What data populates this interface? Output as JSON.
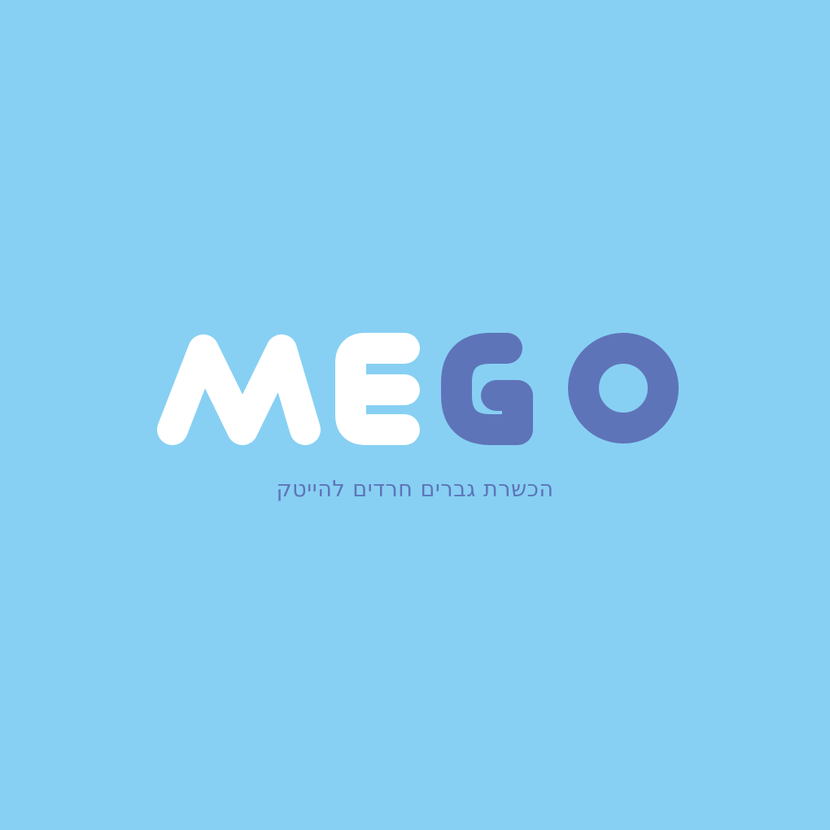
{
  "logo": {
    "wordmark": "MEGO",
    "wordmark_letters": [
      {
        "letter": "M",
        "color": "#ffffff"
      },
      {
        "letter": "E",
        "color": "#ffffff"
      },
      {
        "letter": "G",
        "color": "#5e74b9"
      },
      {
        "letter": "O",
        "color": "#5e74b9"
      }
    ],
    "tagline": "הכשרת גברים חרדים להייטק"
  },
  "colors": {
    "background": "#87d0f3",
    "light_letters": "#ffffff",
    "dark_letters": "#5e74b9",
    "tagline": "#5e74b9"
  }
}
